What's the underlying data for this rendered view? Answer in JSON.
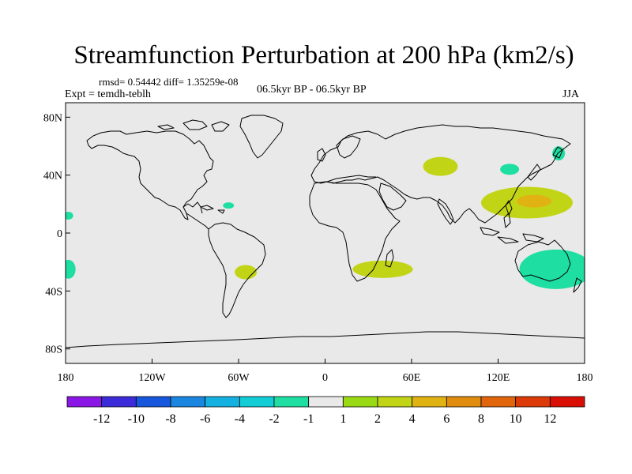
{
  "title": "Streamfunction Perturbation at 200 hPa (km2/s)",
  "stats": "rmsd= 0.54442 diff= 1.35259e-08",
  "experiment": "Expt = temdh-teblh",
  "period": "06.5kyr BP - 06.5kyr BP",
  "season": "JJA",
  "lat_labels": [
    "80N",
    "40N",
    "0",
    "40S",
    "80S"
  ],
  "lon_labels": [
    "180",
    "120W",
    "60W",
    "0",
    "60E",
    "120E",
    "180"
  ],
  "colorbar": {
    "labels": [
      "-12",
      "-10",
      "-8",
      "-6",
      "-4",
      "-2",
      "-1",
      "1",
      "2",
      "4",
      "6",
      "8",
      "10",
      "12"
    ],
    "colors": [
      "#8a17e6",
      "#3b2bd9",
      "#1657dd",
      "#1a86e0",
      "#14b0e0",
      "#12cdd6",
      "#1edea2",
      "#e9e9e9",
      "#9ada14",
      "#c2d416",
      "#e0b312",
      "#e08c0e",
      "#e0650b",
      "#dc3a08",
      "#d90f06"
    ]
  },
  "map_background": "#e9e9e9",
  "anomalies": [
    {
      "name": "central-asia",
      "lon": 80,
      "lat": 46,
      "value": 2
    },
    {
      "name": "west-pacific",
      "lon": 140,
      "lat": 21,
      "value": 2
    },
    {
      "name": "west-pacific-core",
      "lon": 145,
      "lat": 22,
      "value": 4
    },
    {
      "name": "south-africa-indian-ocean",
      "lon": 40,
      "lat": -25,
      "value": 2
    },
    {
      "name": "south-america",
      "lon": -55,
      "lat": -27,
      "value": 2
    },
    {
      "name": "australia-pacific",
      "lon": 160,
      "lat": -25,
      "value": -2
    },
    {
      "name": "japan-east",
      "lon": 128,
      "lat": 44,
      "value": -2
    },
    {
      "name": "kamchatka",
      "lon": 162,
      "lat": 55,
      "value": -2
    },
    {
      "name": "south-pacific-west",
      "lon": -178,
      "lat": -25,
      "value": -2
    },
    {
      "name": "north-pacific-east",
      "lon": -178,
      "lat": 12,
      "value": -2
    },
    {
      "name": "caribbean",
      "lon": -67,
      "lat": 19,
      "value": -2
    }
  ]
}
